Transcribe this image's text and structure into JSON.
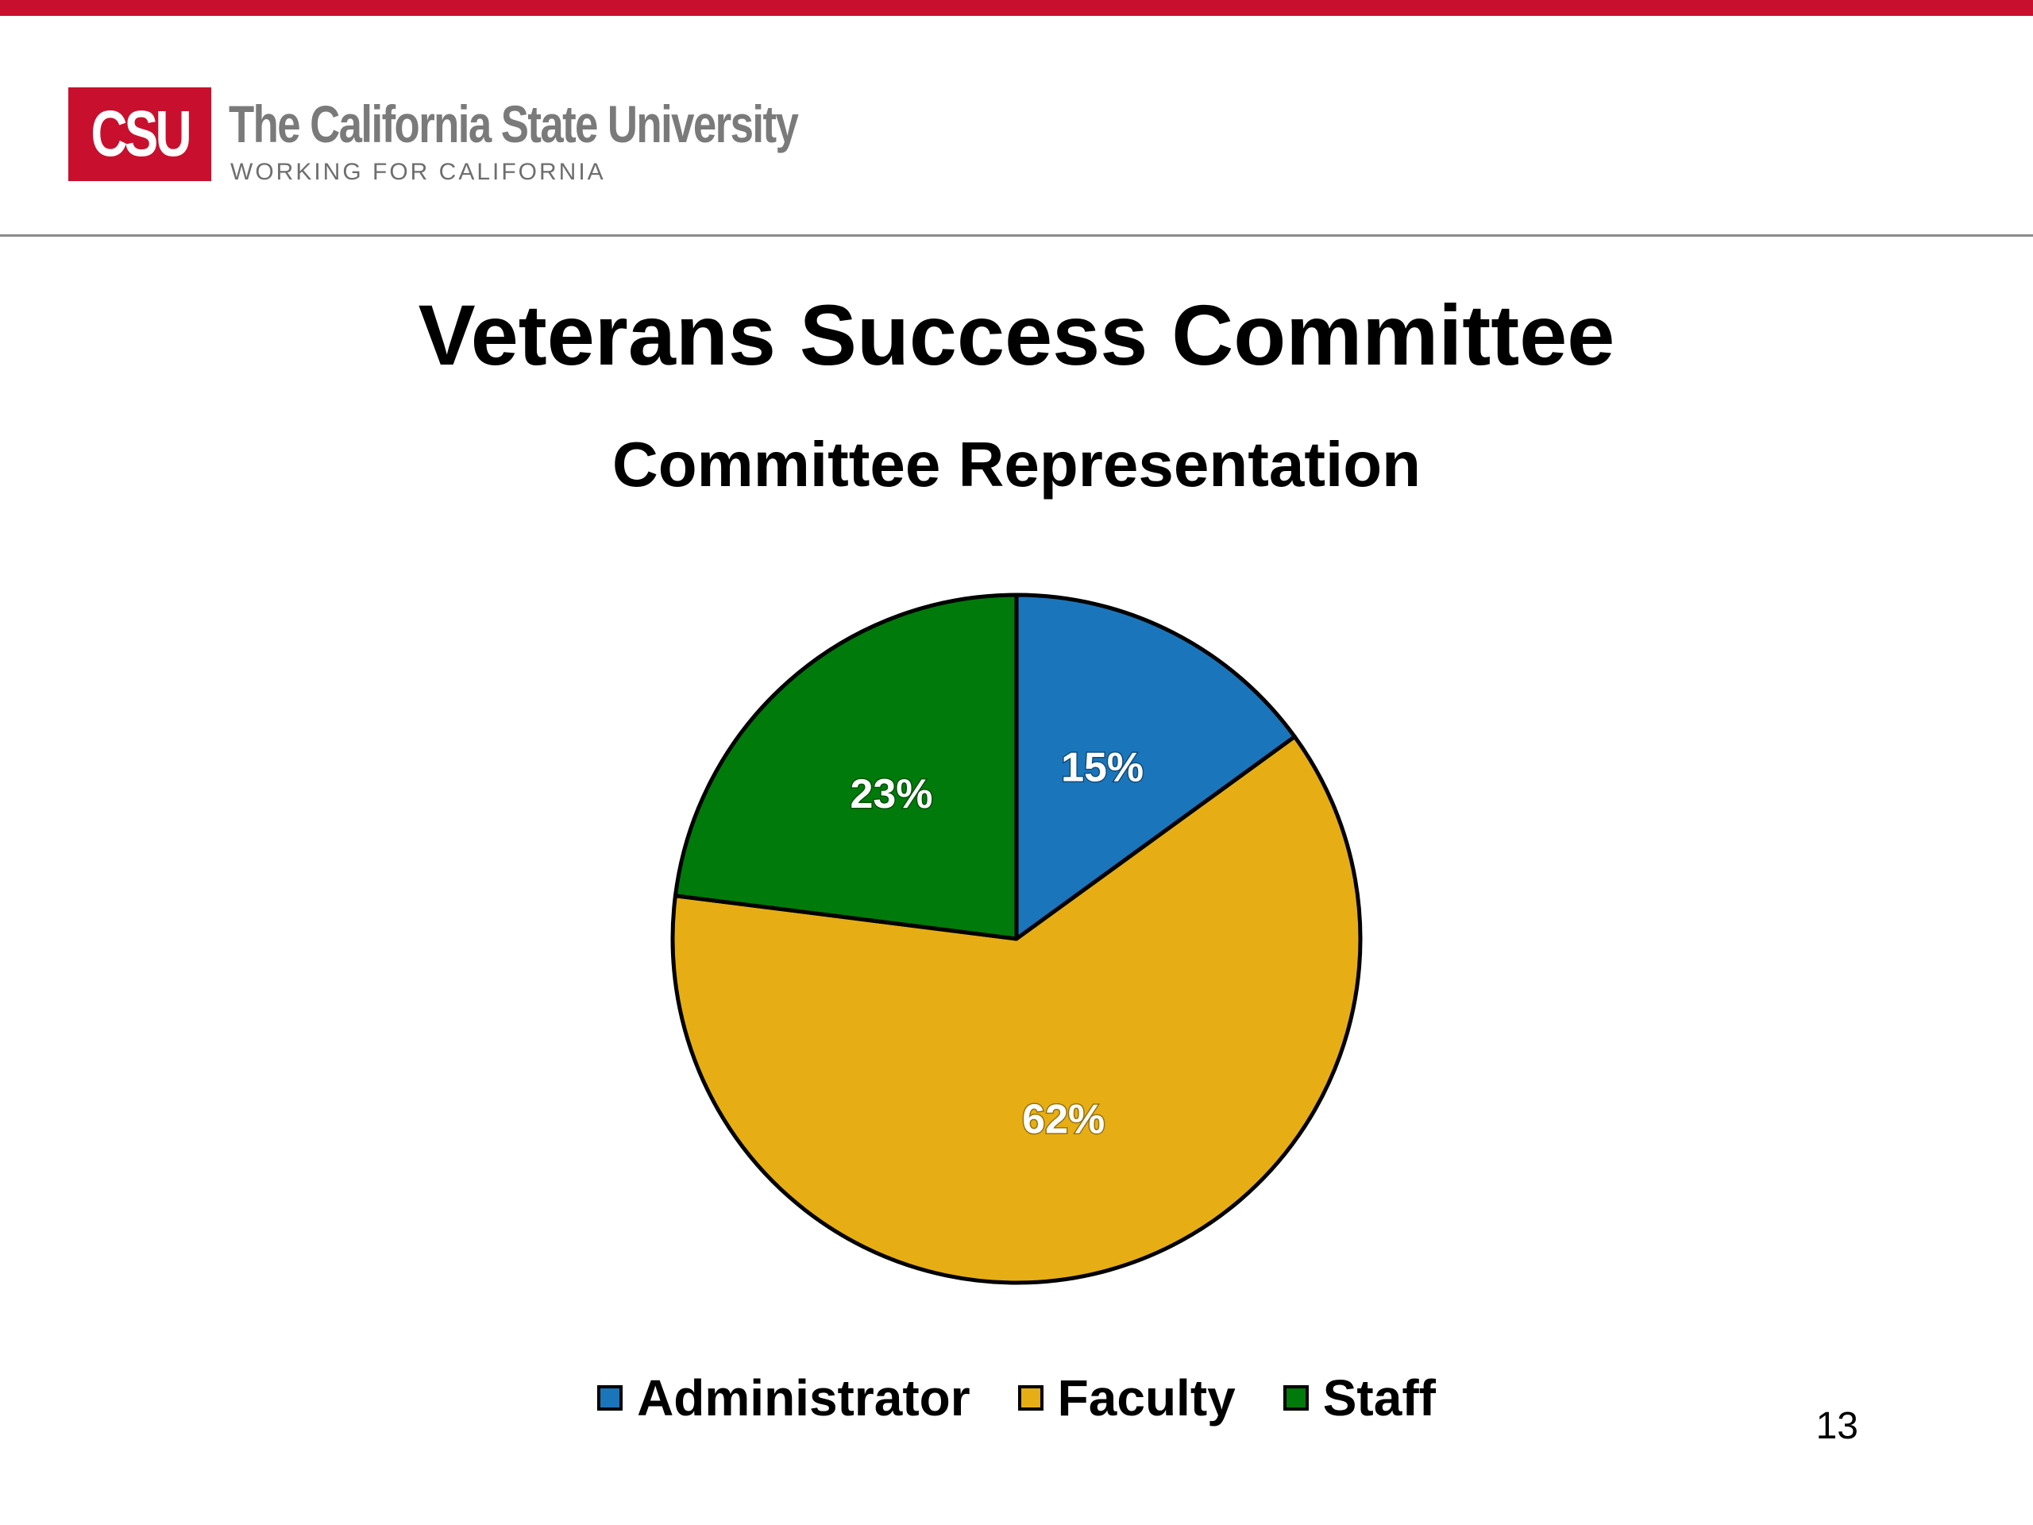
{
  "header": {
    "logo_text": "CSU",
    "brand_name": "The California State University",
    "tagline": "WORKING FOR CALIFORNIA",
    "accent_color": "#c8102e"
  },
  "slide": {
    "title": "Veterans Success Committee",
    "page_number": "13"
  },
  "chart_data": {
    "type": "pie",
    "title": "Committee Representation",
    "categories": [
      "Administrator",
      "Faculty",
      "Staff"
    ],
    "values": [
      15,
      62,
      23
    ],
    "labels": [
      "15%",
      "62%",
      "23%"
    ],
    "colors": [
      "#1a75bb",
      "#e6ae14",
      "#007a0a"
    ],
    "legend_position": "bottom",
    "start_angle": "12 o'clock",
    "direction": "clockwise"
  }
}
